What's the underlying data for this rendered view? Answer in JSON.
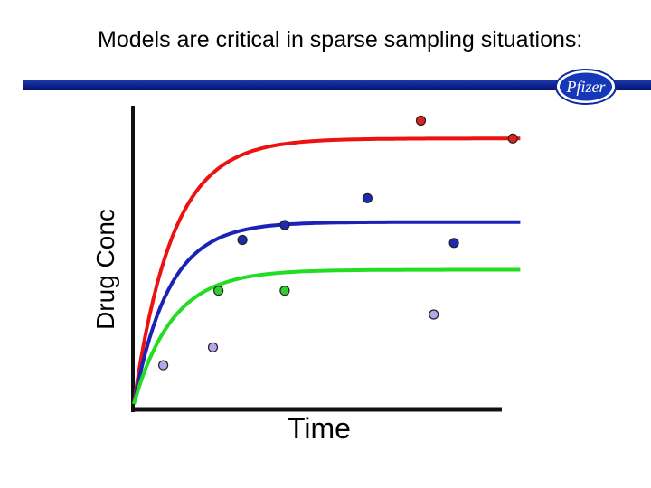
{
  "slide": {
    "title": "Models are critical in sparse sampling situations:",
    "logo_text": "Pfizer",
    "bar_color": "#0d2496"
  },
  "chart_data": {
    "type": "scatter",
    "title": "Models are critical in sparse sampling situations:",
    "xlabel": "Time",
    "ylabel": "Drug Conc",
    "xlim": [
      0,
      10
    ],
    "ylim": [
      0,
      10
    ],
    "grid": false,
    "x_ticks": [],
    "y_ticks": [],
    "curves": [
      {
        "color": "#ee1111",
        "plateau": 8.9,
        "rate": 0.95
      },
      {
        "color": "#1a22b8",
        "plateau": 6.1,
        "rate": 1.05
      },
      {
        "color": "#22dd22",
        "plateau": 4.5,
        "rate": 0.95
      }
    ],
    "points": [
      {
        "x": 7.8,
        "y": 9.5,
        "color": "#e02020"
      },
      {
        "x": 10.3,
        "y": 8.9,
        "color": "#e02020"
      },
      {
        "x": 6.35,
        "y": 6.9,
        "color": "#1e2ab0"
      },
      {
        "x": 4.1,
        "y": 6.0,
        "color": "#1e2ab0"
      },
      {
        "x": 2.95,
        "y": 5.5,
        "color": "#1e2ab0"
      },
      {
        "x": 8.7,
        "y": 5.4,
        "color": "#1e2ab0"
      },
      {
        "x": 2.3,
        "y": 3.8,
        "color": "#33cc33"
      },
      {
        "x": 4.1,
        "y": 3.8,
        "color": "#33cc33"
      },
      {
        "x": 8.15,
        "y": 3.0,
        "color": "#b9a6e6"
      },
      {
        "x": 2.15,
        "y": 1.9,
        "color": "#b9a6e6"
      },
      {
        "x": 0.8,
        "y": 1.3,
        "color": "#b9a6e6"
      }
    ]
  }
}
